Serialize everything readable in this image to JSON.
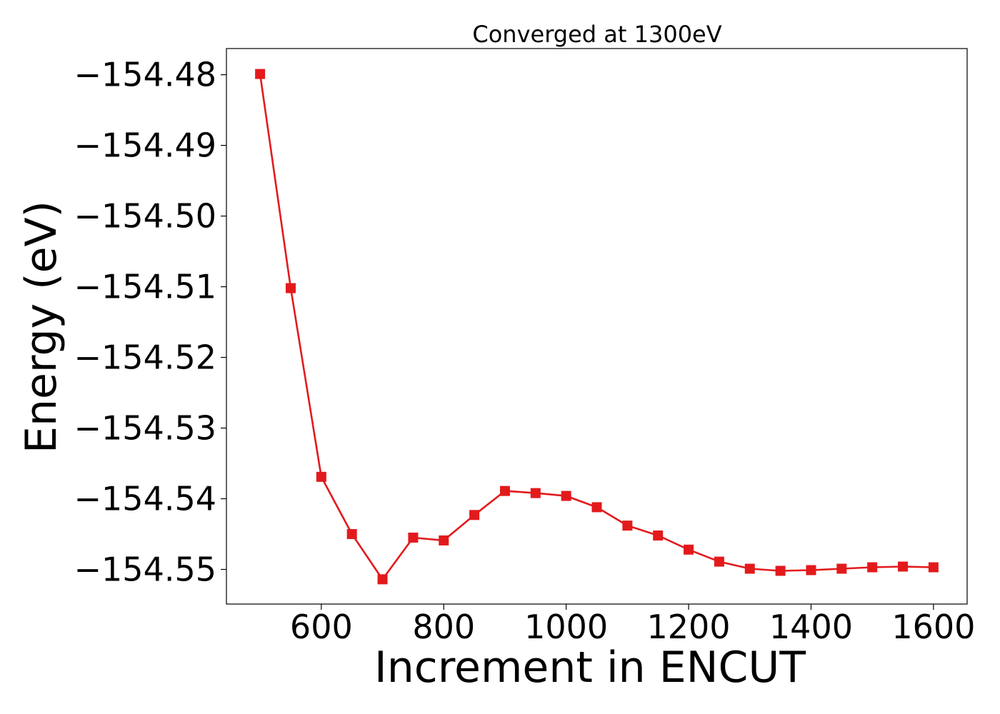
{
  "chart_data": {
    "type": "line",
    "title": "Converged at 1300eV",
    "xlabel": "Increment in ENCUT",
    "ylabel": "Energy (eV)",
    "xlim": [
      445,
      1655
    ],
    "ylim": [
      -154.5549,
      -154.4763
    ],
    "xticks": [
      600,
      800,
      1000,
      1200,
      1400,
      1600
    ],
    "yticks": [
      -154.48,
      -154.49,
      -154.5,
      -154.51,
      -154.52,
      -154.53,
      -154.54,
      -154.55
    ],
    "ytick_labels": [
      "−154.48",
      "−154.49",
      "−154.50",
      "−154.51",
      "−154.52",
      "−154.53",
      "−154.54",
      "−154.55"
    ],
    "grid": false,
    "legend": false,
    "series": [
      {
        "color": "#e31a1c",
        "marker": "square",
        "x": [
          500,
          550,
          600,
          650,
          700,
          750,
          800,
          850,
          900,
          950,
          1000,
          1050,
          1100,
          1150,
          1200,
          1250,
          1300,
          1350,
          1400,
          1450,
          1500,
          1550,
          1600
        ],
        "y": [
          -154.4799,
          -154.5102,
          -154.5369,
          -154.545,
          -154.5514,
          -154.5455,
          -154.5459,
          -154.5423,
          -154.5389,
          -154.5392,
          -154.5396,
          -154.5412,
          -154.5438,
          -154.5452,
          -154.5472,
          -154.5489,
          -154.5499,
          -154.5502,
          -154.5501,
          -154.5499,
          -154.5497,
          -154.5496,
          -154.5497
        ]
      }
    ]
  }
}
